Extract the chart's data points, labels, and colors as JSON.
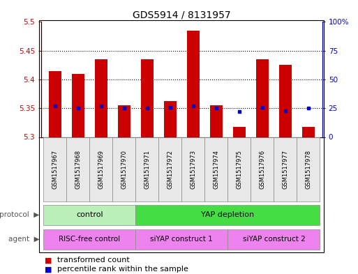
{
  "title": "GDS5914 / 8131957",
  "samples": [
    "GSM1517967",
    "GSM1517968",
    "GSM1517969",
    "GSM1517970",
    "GSM1517971",
    "GSM1517972",
    "GSM1517973",
    "GSM1517974",
    "GSM1517975",
    "GSM1517976",
    "GSM1517977",
    "GSM1517978"
  ],
  "transformed_count": [
    5.415,
    5.41,
    5.435,
    5.355,
    5.435,
    5.362,
    5.485,
    5.355,
    5.318,
    5.435,
    5.425,
    5.318
  ],
  "percentile_rank": [
    27,
    25,
    27,
    25,
    25,
    26,
    27,
    25,
    22,
    26,
    23,
    25
  ],
  "ylim": [
    5.3,
    5.5
  ],
  "yticks": [
    5.3,
    5.35,
    5.4,
    5.45,
    5.5
  ],
  "ytick_labels": [
    "5.3",
    "5.35",
    "5.4",
    "5.45",
    "5.5"
  ],
  "right_ylim": [
    0,
    100
  ],
  "right_yticks": [
    0,
    25,
    50,
    75,
    100
  ],
  "right_ytick_labels": [
    "0",
    "25",
    "50",
    "75",
    "100%"
  ],
  "hlines": [
    5.35,
    5.4,
    5.45
  ],
  "bar_color": "#cc0000",
  "dot_color": "#0000cc",
  "bar_width": 0.55,
  "left_axis_color": "#cc0000",
  "right_axis_color": "#0000cc",
  "title_fontsize": 10,
  "tick_fontsize": 7.5,
  "legend_fontsize": 8,
  "proto_control_color": "#bbf0bb",
  "proto_yap_color": "#44dd44",
  "agent_color": "#ee82ee",
  "proto_control_label": "control",
  "proto_yap_label": "YAP depletion",
  "agent_labels": [
    "RISC-free control",
    "siYAP construct 1",
    "siYAP construct 2"
  ],
  "bg_color": "#e8e8e8"
}
